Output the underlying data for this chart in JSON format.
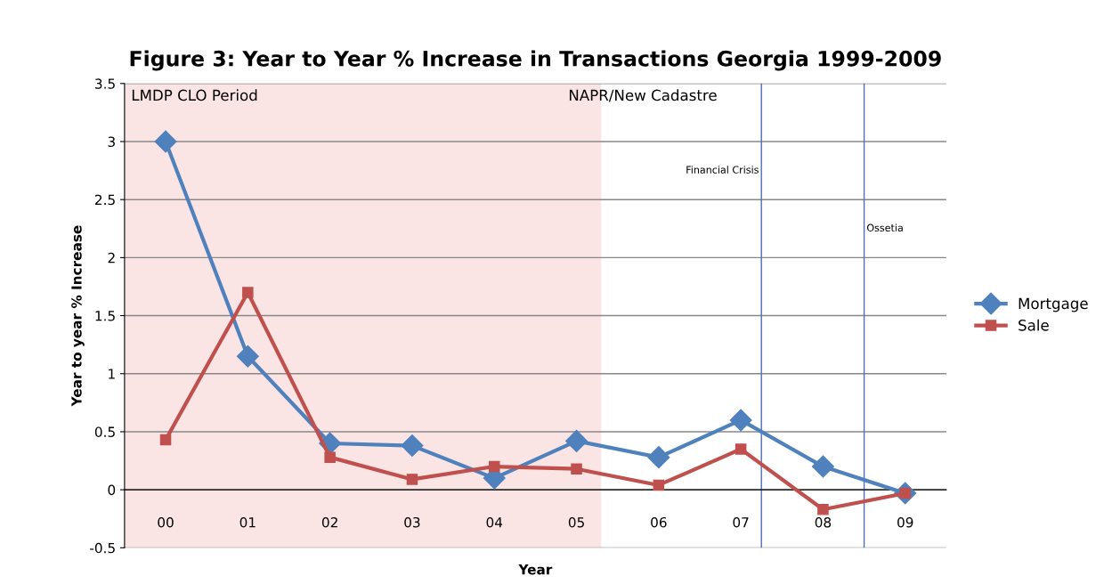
{
  "chart_data": {
    "type": "line",
    "title": "Figure 3: Year to Year % Increase in Transactions Georgia 1999-2009",
    "xlabel": "Year",
    "ylabel": "Year to year % Increase",
    "x": [
      2000,
      2001,
      2002,
      2003,
      2004,
      2005,
      2006,
      2007,
      2008,
      2009
    ],
    "series": [
      {
        "name": "Mortgage",
        "color": "#4f81bd",
        "marker": "diamond",
        "values": [
          3.0,
          1.15,
          0.4,
          0.38,
          0.1,
          0.42,
          0.28,
          0.6,
          0.2,
          -0.03
        ]
      },
      {
        "name": "Sale",
        "color": "#c0504d",
        "marker": "square",
        "values": [
          0.43,
          1.7,
          0.28,
          0.09,
          0.2,
          0.18,
          0.04,
          0.35,
          -0.17,
          -0.03
        ]
      }
    ],
    "xlim": [
      1999.5,
      2009.5
    ],
    "xticks": [
      {
        "value": 2000,
        "label": "00"
      },
      {
        "value": 2001,
        "label": "01"
      },
      {
        "value": 2002,
        "label": "02"
      },
      {
        "value": 2003,
        "label": "03"
      },
      {
        "value": 2004,
        "label": "04"
      },
      {
        "value": 2005,
        "label": "05"
      },
      {
        "value": 2006,
        "label": "06"
      },
      {
        "value": 2007,
        "label": "07"
      },
      {
        "value": 2008,
        "label": "08"
      },
      {
        "value": 2009,
        "label": "09"
      }
    ],
    "ylim": [
      -0.5,
      3.5
    ],
    "yticks": [
      -0.5,
      0,
      0.5,
      1,
      1.5,
      2,
      2.5,
      3,
      3.5
    ],
    "ref_lines": [
      {
        "axis": "x",
        "value": 2007.25,
        "label": "Financial Crisis",
        "color": "#4f6fbd"
      },
      {
        "axis": "x",
        "value": 2008.5,
        "label": "Ossetia",
        "color": "#4f6fbd"
      }
    ],
    "bands": [
      {
        "axis": "x",
        "from": 1999.5,
        "to": 2005.3,
        "label": "LMDP CLO Period",
        "color": "#fbe4e4"
      }
    ],
    "annotations": [
      "NAPR/New Cadastre"
    ],
    "grid": "y",
    "legend": "right",
    "line_style": "solid"
  }
}
